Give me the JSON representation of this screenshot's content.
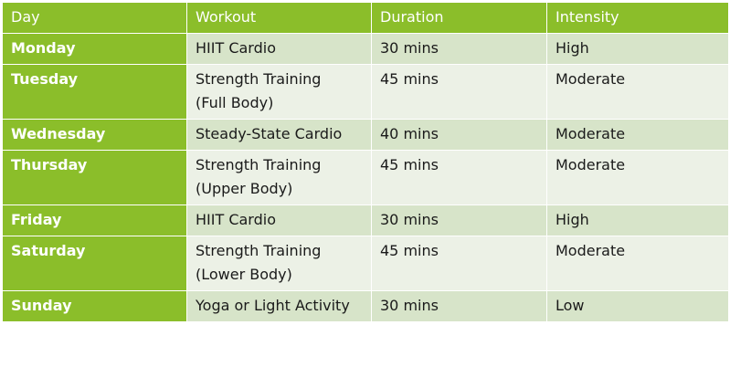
{
  "table": {
    "headers": {
      "day": "Day",
      "workout": "Workout",
      "duration": "Duration",
      "intensity": "Intensity"
    },
    "rows": [
      {
        "day": "Monday",
        "workout_lines": [
          "HIIT Cardio"
        ],
        "duration": "30 mins",
        "intensity": "High"
      },
      {
        "day": "Tuesday",
        "workout_lines": [
          "Strength Training",
          "(Full Body)"
        ],
        "duration": "45 mins",
        "intensity": "Moderate"
      },
      {
        "day": "Wednesday",
        "workout_lines": [
          "Steady-State Cardio"
        ],
        "duration": "40 mins",
        "intensity": "Moderate"
      },
      {
        "day": "Thursday",
        "workout_lines": [
          "Strength Training",
          "(Upper Body)"
        ],
        "duration": "45 mins",
        "intensity": "Moderate"
      },
      {
        "day": "Friday",
        "workout_lines": [
          "HIIT Cardio"
        ],
        "duration": "30 mins",
        "intensity": "High"
      },
      {
        "day": "Saturday",
        "workout_lines": [
          "Strength Training",
          "(Lower Body)"
        ],
        "duration": "45 mins",
        "intensity": "Moderate"
      },
      {
        "day": "Sunday",
        "workout_lines": [
          "Yoga or Light Activity"
        ],
        "duration": "30 mins",
        "intensity": "Low"
      }
    ]
  }
}
